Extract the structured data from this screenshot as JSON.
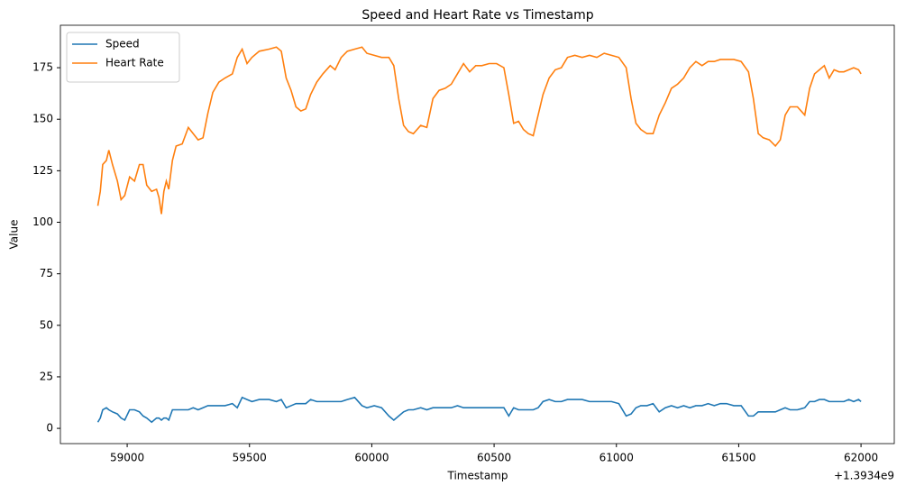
{
  "chart_data": {
    "type": "line",
    "title": "Speed and Heart Rate vs Timestamp",
    "x_label": "Timestamp",
    "y_label": "Value",
    "x_offset_label": "+1.3934e9",
    "x": [
      58880,
      58890,
      58900,
      58915,
      58925,
      58940,
      58960,
      58975,
      58990,
      59010,
      59030,
      59050,
      59065,
      59080,
      59100,
      59120,
      59130,
      59140,
      59150,
      59160,
      59170,
      59185,
      59200,
      59225,
      59250,
      59270,
      59290,
      59310,
      59330,
      59350,
      59375,
      59400,
      59430,
      59450,
      59470,
      59490,
      59510,
      59540,
      59580,
      59610,
      59630,
      59650,
      59670,
      59690,
      59710,
      59730,
      59750,
      59775,
      59800,
      59830,
      59850,
      59875,
      59900,
      59930,
      59960,
      59980,
      60010,
      60040,
      60070,
      60090,
      60110,
      60130,
      60150,
      60170,
      60200,
      60225,
      60250,
      60275,
      60300,
      60325,
      60350,
      60375,
      60400,
      60425,
      60450,
      60480,
      60510,
      60540,
      60560,
      60580,
      60600,
      60620,
      60640,
      60660,
      60680,
      60700,
      60725,
      60750,
      60775,
      60800,
      60830,
      60860,
      60890,
      60920,
      60950,
      60980,
      61010,
      61040,
      61060,
      61080,
      61100,
      61125,
      61150,
      61175,
      61200,
      61225,
      61250,
      61275,
      61300,
      61325,
      61350,
      61375,
      61400,
      61425,
      61450,
      61480,
      61510,
      61540,
      61560,
      61580,
      61600,
      61625,
      61650,
      61670,
      61690,
      61710,
      61740,
      61770,
      61790,
      61810,
      61830,
      61850,
      61870,
      61890,
      61910,
      61930,
      61950,
      61970,
      61990,
      62000
    ],
    "series": [
      {
        "name": "Speed",
        "color": "#1f77b4",
        "values": [
          3,
          5,
          9,
          10,
          9,
          8,
          7,
          5,
          4,
          9,
          9,
          8,
          6,
          5,
          3,
          5,
          5,
          4,
          5,
          5,
          4,
          9,
          9,
          9,
          9,
          10,
          9,
          10,
          11,
          11,
          11,
          11,
          12,
          10,
          15,
          14,
          13,
          14,
          14,
          13,
          14,
          10,
          11,
          12,
          12,
          12,
          14,
          13,
          13,
          13,
          13,
          13,
          14,
          15,
          11,
          10,
          11,
          10,
          6,
          4,
          6,
          8,
          9,
          9,
          10,
          9,
          10,
          10,
          10,
          10,
          11,
          10,
          10,
          10,
          10,
          10,
          10,
          10,
          6,
          10,
          9,
          9,
          9,
          9,
          10,
          13,
          14,
          13,
          13,
          14,
          14,
          14,
          13,
          13,
          13,
          13,
          12,
          6,
          7,
          10,
          11,
          11,
          12,
          8,
          10,
          11,
          10,
          11,
          10,
          11,
          11,
          12,
          11,
          12,
          12,
          11,
          11,
          6,
          6,
          8,
          8,
          8,
          8,
          9,
          10,
          9,
          9,
          10,
          13,
          13,
          14,
          14,
          13,
          13,
          13,
          13,
          14,
          13,
          14,
          13
        ]
      },
      {
        "name": "Heart Rate",
        "color": "#ff7f0e",
        "values": [
          108,
          115,
          128,
          130,
          135,
          128,
          120,
          111,
          113,
          122,
          120,
          128,
          128,
          118,
          115,
          116,
          112,
          104,
          115,
          120,
          116,
          130,
          137,
          138,
          146,
          143,
          140,
          141,
          153,
          163,
          168,
          170,
          172,
          180,
          184,
          177,
          180,
          183,
          184,
          185,
          183,
          170,
          164,
          156,
          154,
          155,
          162,
          168,
          172,
          176,
          174,
          180,
          183,
          184,
          185,
          182,
          181,
          180,
          180,
          176,
          160,
          147,
          144,
          143,
          147,
          146,
          160,
          164,
          165,
          167,
          172,
          177,
          173,
          176,
          176,
          177,
          177,
          175,
          162,
          148,
          149,
          145,
          143,
          142,
          152,
          162,
          170,
          174,
          175,
          180,
          181,
          180,
          181,
          180,
          182,
          181,
          180,
          175,
          160,
          148,
          145,
          143,
          143,
          152,
          158,
          165,
          167,
          170,
          175,
          178,
          176,
          178,
          178,
          179,
          179,
          179,
          178,
          173,
          160,
          143,
          141,
          140,
          137,
          140,
          152,
          156,
          156,
          152,
          165,
          172,
          174,
          176,
          170,
          174,
          173,
          173,
          174,
          175,
          174,
          172
        ]
      }
    ],
    "xlim": [
      58727,
      62136
    ],
    "xticks": [
      59000,
      59500,
      60000,
      60500,
      61000,
      61500,
      62000
    ],
    "ylim": [
      -7.4,
      195.6
    ],
    "yticks": [
      0,
      25,
      50,
      75,
      100,
      125,
      150,
      175
    ],
    "grid": false,
    "legend": "upper-left"
  }
}
